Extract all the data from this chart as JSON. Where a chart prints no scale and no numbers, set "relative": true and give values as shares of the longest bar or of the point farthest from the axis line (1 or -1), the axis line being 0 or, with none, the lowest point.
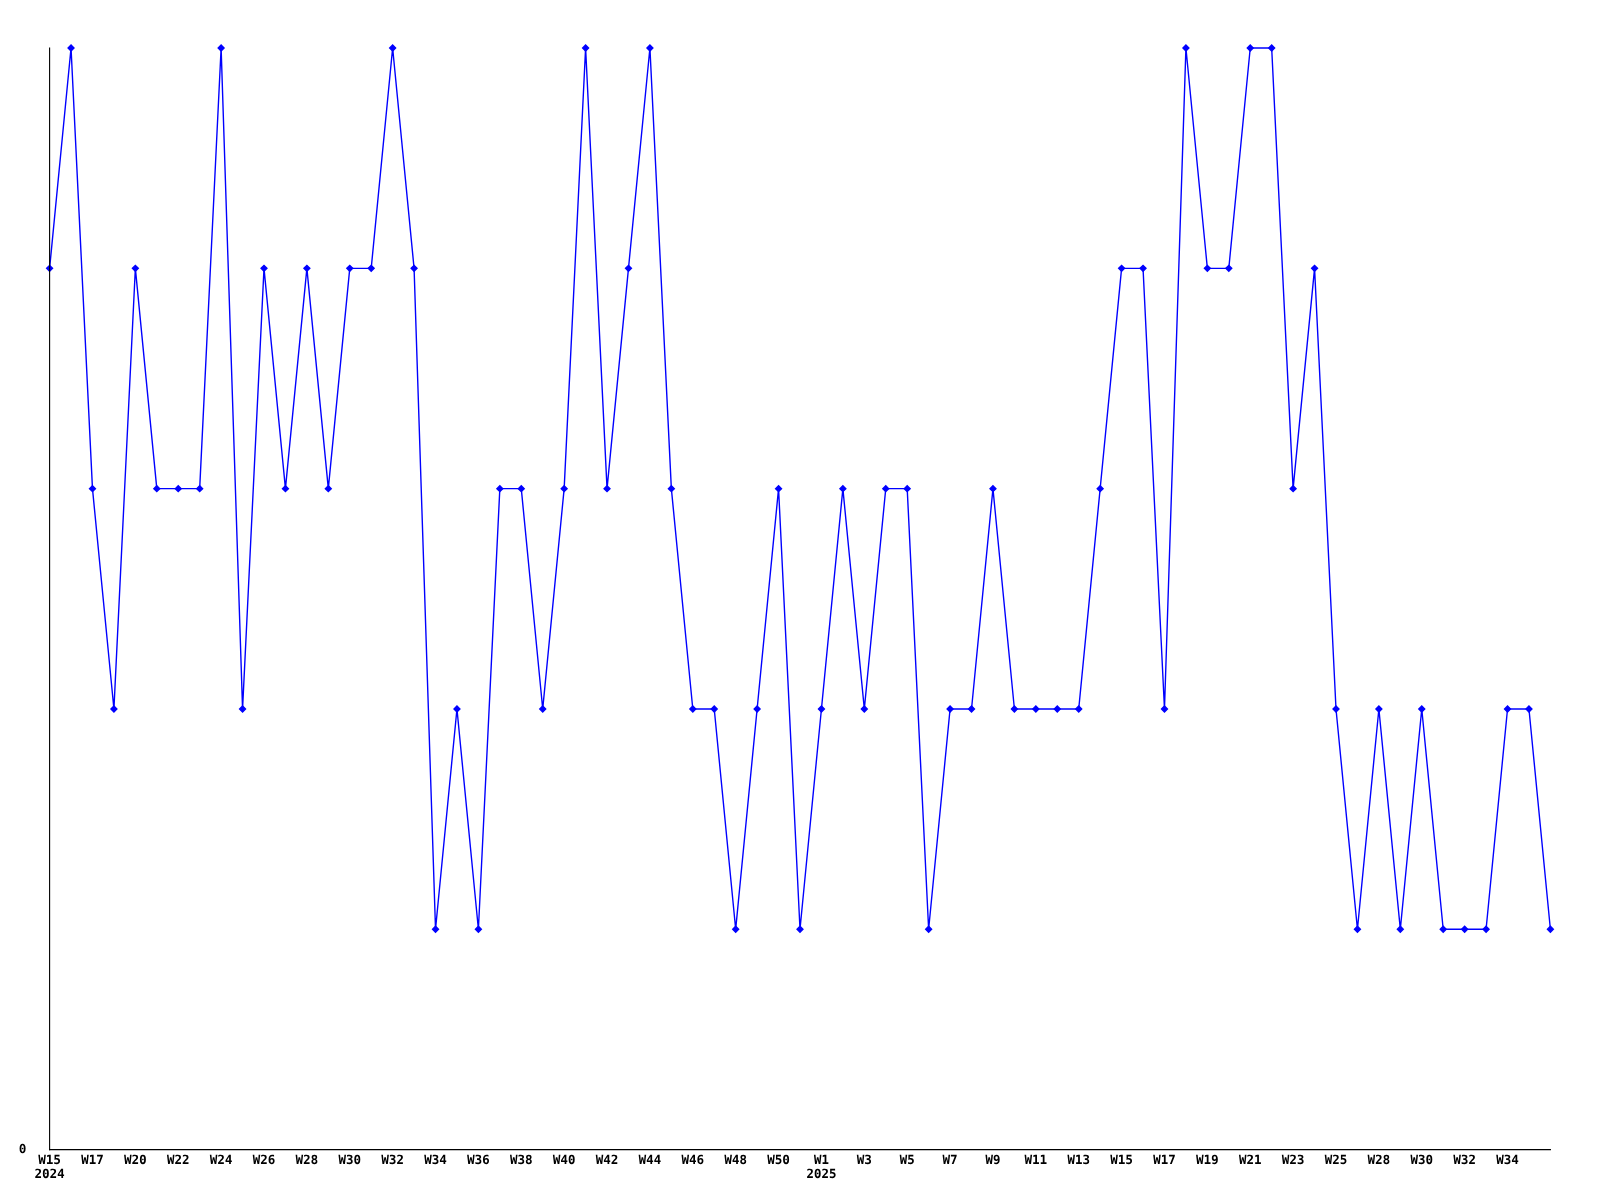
{
  "chart_data": {
    "type": "line",
    "relative": true,
    "categories": [
      "W15\n2024",
      null,
      "W17",
      null,
      "W20",
      null,
      "W22",
      null,
      "W24",
      null,
      "W26",
      null,
      "W28",
      null,
      "W30",
      null,
      "W32",
      null,
      "W34",
      null,
      "W36",
      null,
      "W38",
      null,
      "W40",
      null,
      "W42",
      null,
      "W44",
      null,
      "W46",
      null,
      "W48",
      null,
      "W50",
      null,
      "W1\n2025",
      null,
      "W3",
      null,
      "W5",
      null,
      "W7",
      null,
      "W9",
      null,
      "W11",
      null,
      "W13",
      null,
      "W15",
      null,
      "W17",
      null,
      "W19",
      null,
      "W21",
      null,
      "W23",
      null,
      "W25",
      null,
      "W28",
      null,
      "W30",
      null,
      "W32",
      null,
      "W34",
      null,
      null
    ],
    "series": [
      {
        "color": "#0000ff",
        "values": [
          0.8,
          1,
          0.6,
          0.4,
          0.8,
          0.6,
          0.6,
          0.6,
          1,
          0.4,
          0.8,
          0.6,
          0.8,
          0.6,
          0.8,
          0.8,
          1,
          0.8,
          0.2,
          0.4,
          0.2,
          0.6,
          0.6,
          0.4,
          0.6,
          1,
          0.6,
          0.8,
          1,
          0.6,
          0.4,
          0.4,
          0.2,
          0.4,
          0.6,
          0.2,
          0.4,
          0.6,
          0.4,
          0.6,
          0.6,
          0.2,
          0.4,
          0.4,
          0.6,
          0.4,
          0.4,
          0.4,
          0.4,
          0.6,
          0.8,
          0.8,
          0.4,
          1,
          0.8,
          0.8,
          1,
          1,
          0.6,
          0.8,
          0.4,
          0.2,
          0.4,
          0.2,
          0.4,
          0.2,
          0.2,
          0.2,
          0.4,
          0.4,
          0.2
        ]
      }
    ],
    "annotations": [
      "0"
    ],
    "marker": "diamond",
    "line_style": "solid",
    "grid": false,
    "legend": false
  }
}
